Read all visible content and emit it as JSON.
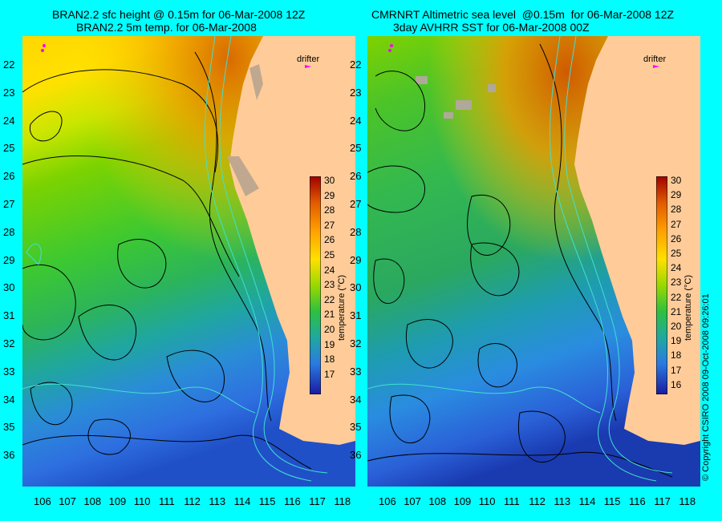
{
  "left_panel": {
    "title_line1": "BRAN2.2 sfc height @ 0.15m for 06-Mar-2008 12Z",
    "title_line2": "BRAN2.2 5m temp. for 06-Mar-2008",
    "drifter_label": "drifter"
  },
  "right_panel": {
    "title_line1": "CMRNRT Altimetric sea level  @0.15m  for 06-Mar-2008 12Z",
    "title_line2": "3day AVHRR SST for 06-Mar-2008 00Z",
    "drifter_label": "drifter"
  },
  "latitudes": [
    "22",
    "23",
    "24",
    "25",
    "26",
    "27",
    "28",
    "29",
    "30",
    "31",
    "32",
    "33",
    "34",
    "35",
    "36"
  ],
  "longitudes": [
    "106",
    "107",
    "108",
    "109",
    "110",
    "111",
    "112",
    "113",
    "114",
    "115",
    "116",
    "117",
    "118"
  ],
  "colorbar_left": {
    "label": "temperature (°C)",
    "ticks": [
      "30",
      "29",
      "28",
      "27",
      "26",
      "25",
      "24",
      "23",
      "22",
      "21",
      "20",
      "19",
      "18",
      "17"
    ]
  },
  "colorbar_right": {
    "label": "temperature (°C)",
    "ticks": [
      "30",
      "29",
      "28",
      "27",
      "26",
      "25",
      "24",
      "23",
      "22",
      "21",
      "20",
      "19",
      "18",
      "17",
      "16"
    ]
  },
  "copyright": "© Copyright CSIRO 2008   09-Oct-2008 09:26:01",
  "colors": {
    "background": "#00ffff",
    "land": "#ffcc99",
    "contour": "#000000",
    "isobath": "#40e0d0",
    "drifter": "#ff00ff"
  }
}
